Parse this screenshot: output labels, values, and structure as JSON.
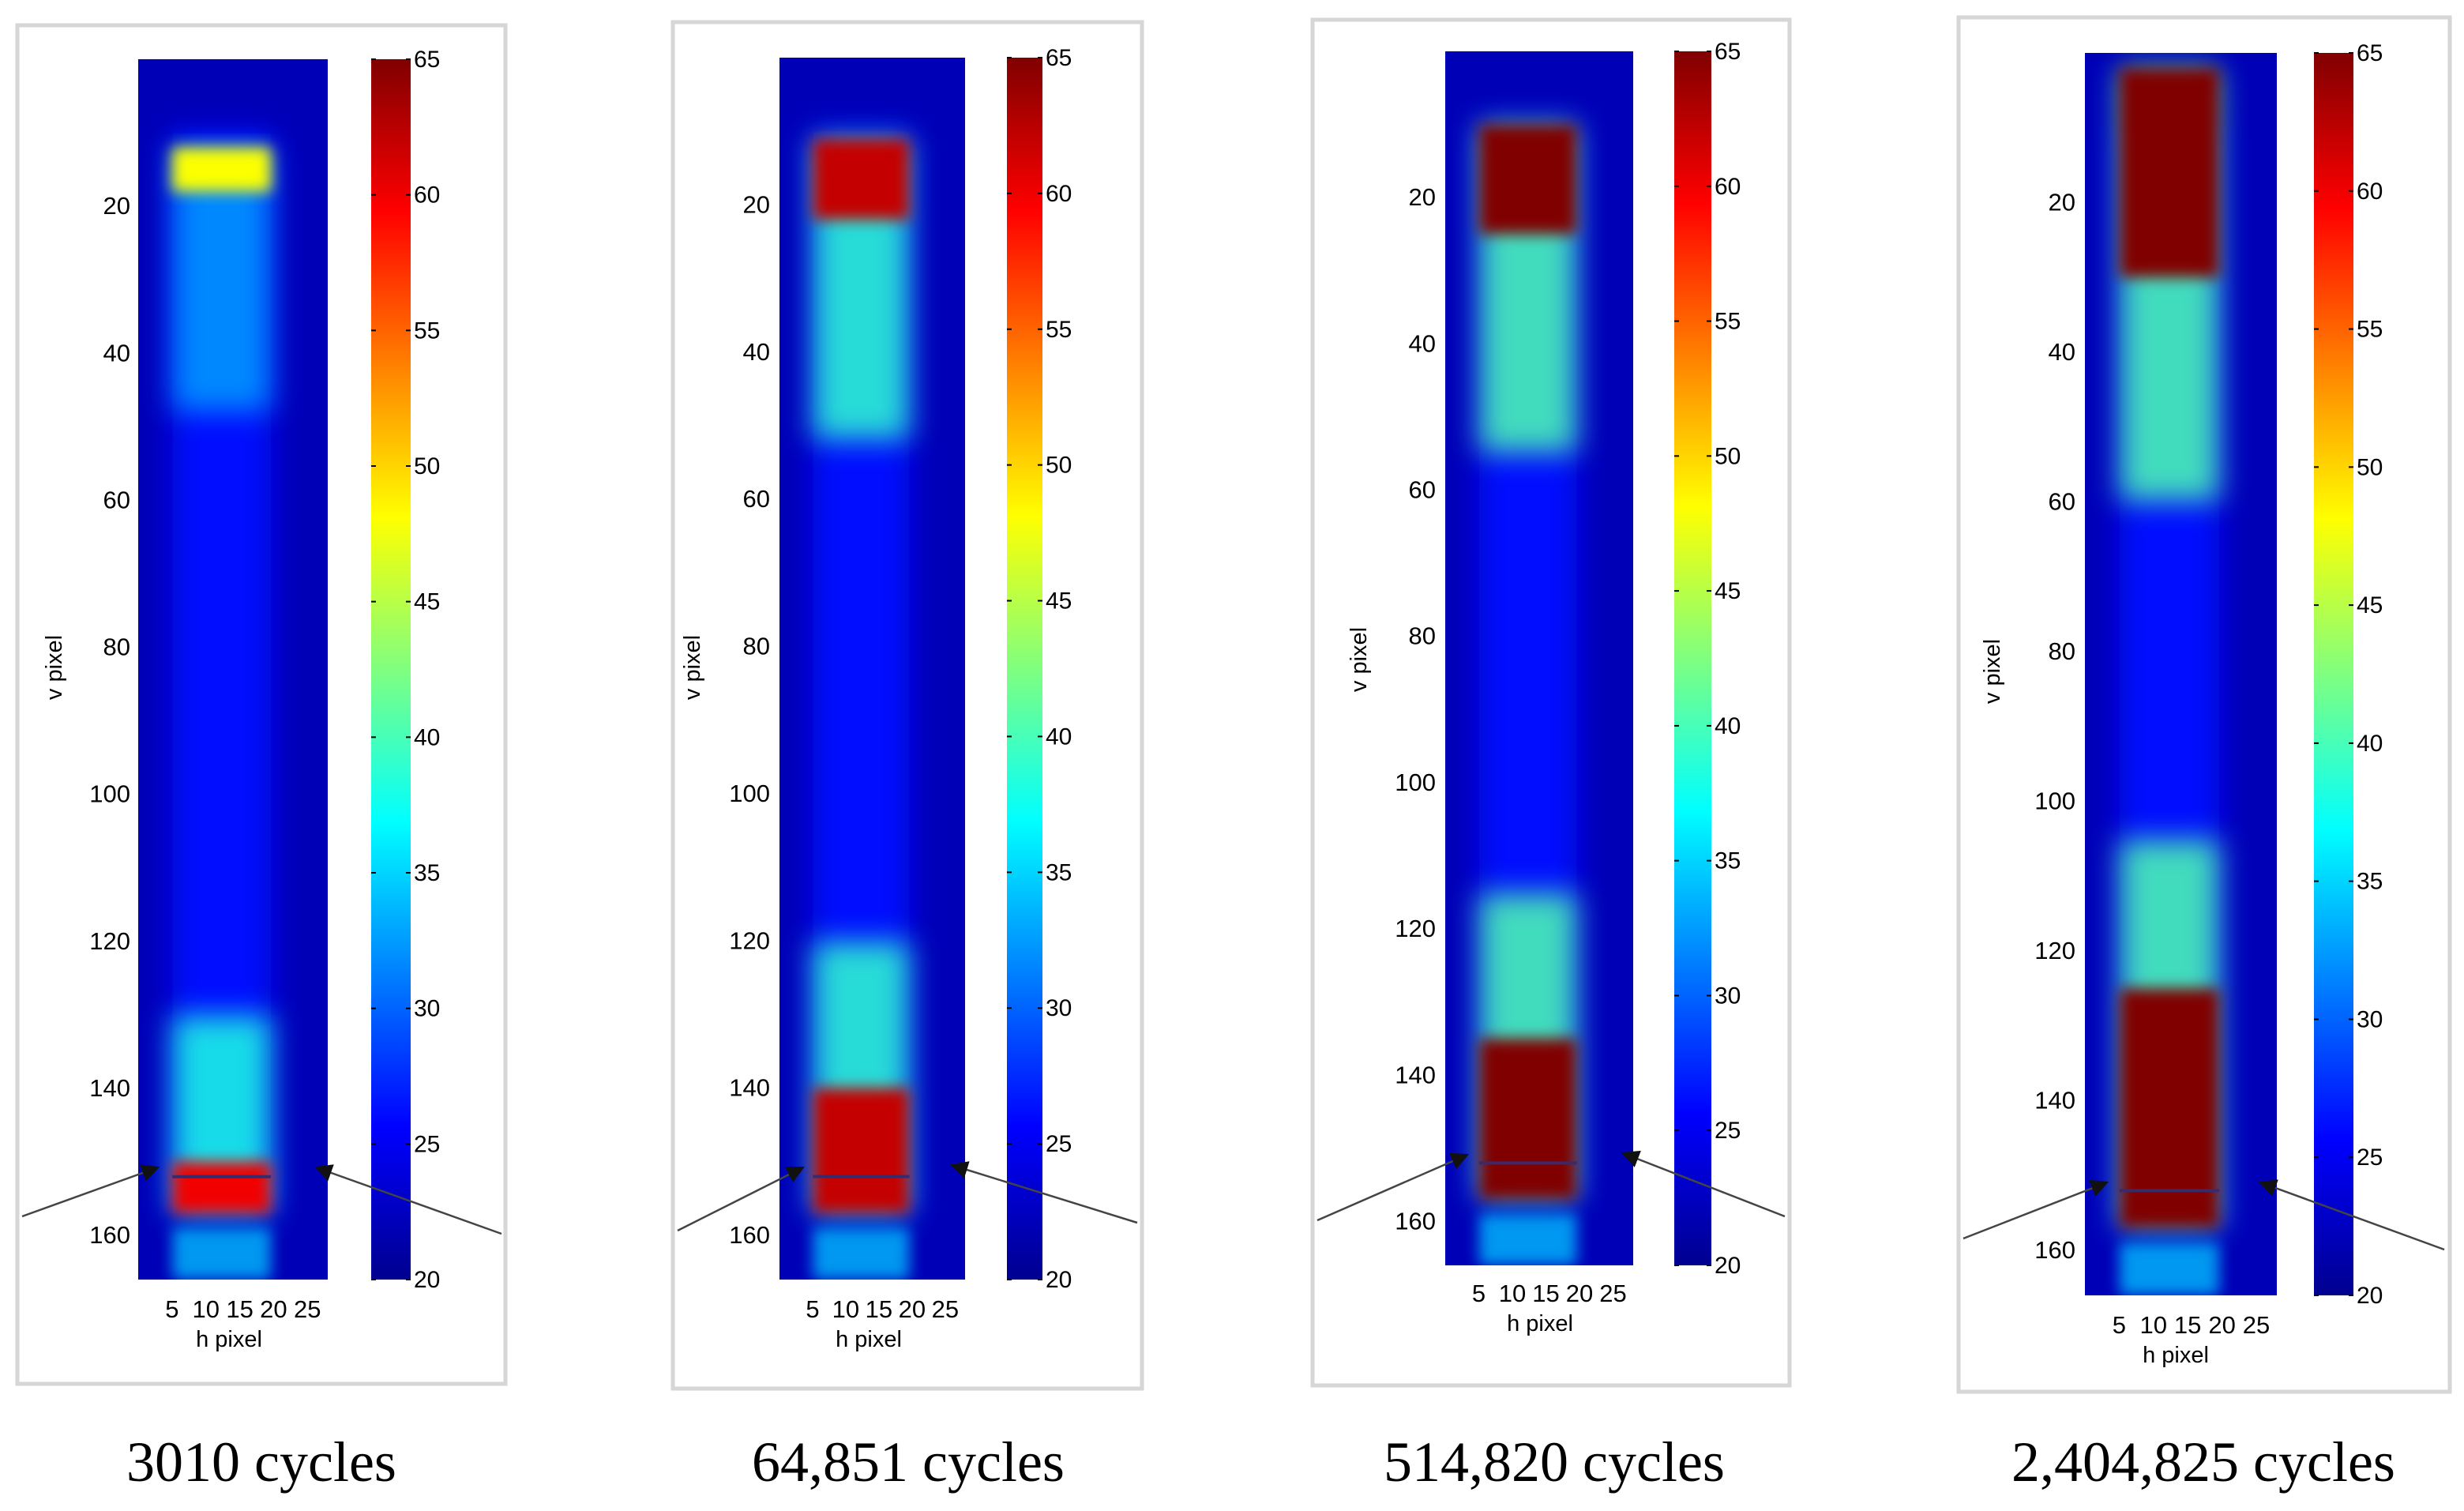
{
  "chart_data": [
    {
      "type": "heatmap",
      "caption": "3010 cycles",
      "xlabel": "h pixel",
      "ylabel": "v pixel",
      "xticks": [
        "5",
        "10",
        "15",
        "20",
        "25"
      ],
      "yticks": [
        "20",
        "40",
        "60",
        "80",
        "100",
        "120",
        "140",
        "160"
      ],
      "colorbar_ticks": [
        "20",
        "25",
        "30",
        "35",
        "40",
        "45",
        "50",
        "55",
        "60",
        "65"
      ],
      "colorbar_range": [
        20,
        65
      ],
      "hot_spots": [
        {
          "location": "top grip edge",
          "v_range": [
            12,
            18
          ],
          "peak_value": 48
        },
        {
          "location": "bottom grip edge",
          "v_range": [
            150,
            157
          ],
          "peak_value": 60
        }
      ],
      "colors": {
        "background": "#0a14a8",
        "hot": "#ff1a00"
      }
    },
    {
      "type": "heatmap",
      "caption": "64,851 cycles",
      "xlabel": "h pixel",
      "ylabel": "v pixel",
      "xticks": [
        "5",
        "10",
        "15",
        "20",
        "25"
      ],
      "yticks": [
        "20",
        "40",
        "60",
        "80",
        "100",
        "120",
        "140",
        "160"
      ],
      "colorbar_ticks": [
        "20",
        "25",
        "30",
        "35",
        "40",
        "45",
        "50",
        "55",
        "60",
        "65"
      ],
      "colorbar_range": [
        20,
        65
      ],
      "hot_spots": [
        {
          "location": "top grip edge",
          "v_range": [
            11,
            22
          ],
          "peak_value": 62
        },
        {
          "location": "bottom grip edge",
          "v_range": [
            140,
            157
          ],
          "peak_value": 62
        }
      ],
      "colors": {
        "background": "#0a14a8",
        "hot": "#ff1a00"
      }
    },
    {
      "type": "heatmap",
      "caption": "514,820 cycles",
      "xlabel": "h pixel",
      "ylabel": "v pixel",
      "xticks": [
        "5",
        "10",
        "15",
        "20",
        "25"
      ],
      "yticks": [
        "20",
        "40",
        "60",
        "80",
        "100",
        "120",
        "140",
        "160"
      ],
      "colorbar_ticks": [
        "20",
        "25",
        "30",
        "35",
        "40",
        "45",
        "50",
        "55",
        "60",
        "65"
      ],
      "colorbar_range": [
        20,
        65
      ],
      "hot_spots": [
        {
          "location": "top grip edge",
          "v_range": [
            10,
            25
          ],
          "peak_value": 65
        },
        {
          "location": "bottom grip edge",
          "v_range": [
            135,
            157
          ],
          "peak_value": 65
        }
      ],
      "colors": {
        "background": "#0a14a8",
        "hot": "#ff1a00"
      }
    },
    {
      "type": "heatmap",
      "caption": "2,404,825 cycles",
      "xlabel": "h pixel",
      "ylabel": "v pixel",
      "xticks": [
        "5",
        "10",
        "15",
        "20",
        "25"
      ],
      "yticks": [
        "20",
        "40",
        "60",
        "80",
        "100",
        "120",
        "140",
        "160"
      ],
      "colorbar_ticks": [
        "20",
        "25",
        "30",
        "35",
        "40",
        "45",
        "50",
        "55",
        "60",
        "65"
      ],
      "colorbar_range": [
        20,
        65
      ],
      "hot_spots": [
        {
          "location": "top grip edge",
          "v_range": [
            2,
            30
          ],
          "peak_value": 65
        },
        {
          "location": "bottom grip edge",
          "v_range": [
            125,
            157
          ],
          "peak_value": 65
        }
      ],
      "colors": {
        "background": "#0a14a8",
        "hot": "#ff1a00"
      }
    }
  ]
}
